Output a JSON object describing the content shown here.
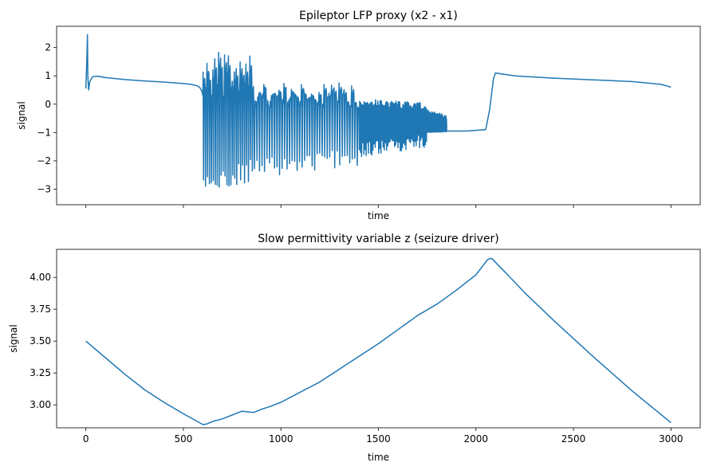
{
  "chart_data": [
    {
      "type": "line",
      "title": "Epileptor LFP proxy (x2 - x1)",
      "xlabel": "time",
      "ylabel": "signal",
      "xlim": [
        -150,
        3150
      ],
      "ylim": [
        -3.55,
        2.75
      ],
      "xticks": [
        0,
        500,
        1000,
        1500,
        2000,
        2500,
        3000
      ],
      "xtick_labels_shown": false,
      "yticks": [
        -3,
        -2,
        -1,
        0,
        1,
        2
      ],
      "ytick_labels": [
        "−3",
        "−2",
        "−1",
        "0",
        "1",
        "2"
      ],
      "grid": false,
      "color": "#1f77b4",
      "series": [
        {
          "x": [
            0,
            5,
            8,
            10,
            14,
            20,
            35,
            60,
            100,
            200,
            300,
            400,
            500,
            540,
            570,
            585,
            595,
            600
          ],
          "y": [
            0.55,
            1.6,
            2.45,
            1.0,
            0.5,
            0.8,
            0.97,
            0.99,
            0.94,
            0.87,
            0.82,
            0.78,
            0.73,
            0.7,
            0.65,
            0.58,
            0.45,
            0.3
          ]
        }
      ],
      "bursts": [
        {
          "start": 600,
          "end": 860,
          "n_spikes": 26,
          "low_min": -3.3,
          "low_max": -1.9,
          "high_min": 0.2,
          "high_max": 1.85
        },
        {
          "start": 860,
          "end": 1400,
          "n_spikes": 42,
          "low_min": -2.6,
          "low_max": -1.5,
          "high_min": -0.2,
          "high_max": 0.75
        },
        {
          "start": 1400,
          "end": 1750,
          "n_spikes": 60,
          "low_min": -1.9,
          "low_max": -1.0,
          "high_min": -0.4,
          "high_max": 0.05
        },
        {
          "start": 1750,
          "end": 1850,
          "n_spikes": 40,
          "low_min": -1.0,
          "low_max": -0.95,
          "high_min": -0.92,
          "high_max": -0.65
        }
      ],
      "tail": {
        "x": [
          1850,
          1950,
          2050,
          2070,
          2090,
          2100,
          2120,
          2200,
          2400,
          2600,
          2800,
          2950,
          3000
        ],
        "y": [
          -0.95,
          -0.95,
          -0.9,
          -0.2,
          0.9,
          1.1,
          1.08,
          1.0,
          0.92,
          0.86,
          0.8,
          0.7,
          0.6
        ]
      }
    },
    {
      "type": "line",
      "title": "Slow permittivity variable z (seizure driver)",
      "xlabel": "time",
      "ylabel": "signal",
      "xlim": [
        -150,
        3150
      ],
      "ylim": [
        2.82,
        4.22
      ],
      "xticks": [
        0,
        500,
        1000,
        1500,
        2000,
        2500,
        3000
      ],
      "xtick_labels": [
        "0",
        "500",
        "1000",
        "1500",
        "2000",
        "2500",
        "3000"
      ],
      "yticks": [
        3.0,
        3.25,
        3.5,
        3.75,
        4.0
      ],
      "ytick_labels": [
        "3.00",
        "3.25",
        "3.50",
        "3.75",
        "4.00"
      ],
      "grid": false,
      "color": "#1f77b4",
      "series": [
        {
          "x": [
            0,
            100,
            200,
            300,
            400,
            500,
            600,
            620,
            650,
            700,
            750,
            800,
            860,
            900,
            950,
            1000,
            1100,
            1200,
            1300,
            1400,
            1500,
            1600,
            1700,
            1800,
            1900,
            2000,
            2060,
            2080,
            2150,
            2250,
            2400,
            2600,
            2800,
            3000
          ],
          "y": [
            3.5,
            3.37,
            3.24,
            3.12,
            3.02,
            2.93,
            2.845,
            2.85,
            2.87,
            2.89,
            2.92,
            2.95,
            2.94,
            2.965,
            2.99,
            3.02,
            3.1,
            3.18,
            3.28,
            3.38,
            3.48,
            3.59,
            3.7,
            3.79,
            3.9,
            4.02,
            4.14,
            4.15,
            4.04,
            3.88,
            3.66,
            3.38,
            3.11,
            2.86
          ]
        }
      ]
    }
  ]
}
